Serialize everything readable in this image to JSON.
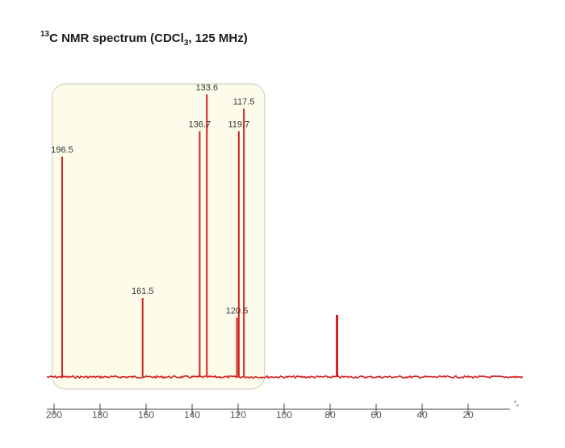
{
  "title": {
    "mass_number": "13",
    "element": "C NMR spectrum (CDCl",
    "subscript": "3",
    "suffix": ", 125 MHz)"
  },
  "colors": {
    "spectrum": "#d42020",
    "highlight_fill": "#fdfcea",
    "highlight_stroke": "#c9c9b8",
    "axis": "#444444"
  },
  "chart_data": {
    "type": "line",
    "title": "13C NMR spectrum (CDCl3, 125 MHz)",
    "xlabel": "",
    "ylabel": "",
    "x_direction": "reversed",
    "xlim": [
      200,
      10
    ],
    "x_ticks": [
      "200",
      "180",
      "160",
      "140",
      "120",
      "100",
      "80",
      "60",
      "40",
      "20"
    ],
    "grid": false,
    "highlight_region": [
      198,
      112
    ],
    "peaks": [
      {
        "shift": 196.5,
        "label": "196.5",
        "intensity": 0.78
      },
      {
        "shift": 161.5,
        "label": "161.5",
        "intensity": 0.28
      },
      {
        "shift": 136.7,
        "label": "136.7",
        "intensity": 0.87
      },
      {
        "shift": 133.6,
        "label": "133.6",
        "intensity": 1.0
      },
      {
        "shift": 120.5,
        "label": "120.5",
        "intensity": 0.21
      },
      {
        "shift": 119.7,
        "label": "119.7",
        "intensity": 0.87
      },
      {
        "shift": 117.5,
        "label": "117.5",
        "intensity": 0.95
      }
    ],
    "solvent_peak": {
      "shift": 77.0,
      "label": "",
      "intensity": 0.22
    }
  }
}
